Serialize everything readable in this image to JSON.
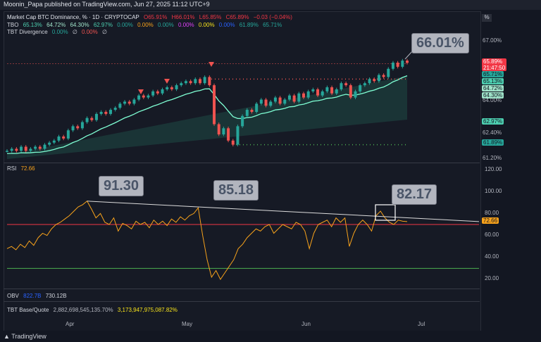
{
  "header": {
    "title": "Moonin_Papa published on TradingView.com, Jun 27, 2025 11:12 UTC+9"
  },
  "footer": {
    "brand": "TradingView"
  },
  "pct_button": "%",
  "legend": {
    "main": {
      "symbol": "Market Cap BTC Dominance, % · 1D · CRYPTOCAP",
      "o": "O65.91%",
      "h": "H66.01%",
      "l": "L65.85%",
      "c": "C65.89%",
      "chg": "−0.03 (−0.04%)"
    },
    "tbo": {
      "label": "TBO",
      "vals": [
        "65.13%",
        "64.72%",
        "64.30%",
        "62.97%",
        "0.00%",
        "0.00%",
        "0.00%",
        "0.00%",
        "0.00%",
        "0.00%",
        "61.89%",
        "65.71%"
      ]
    },
    "tbt": {
      "label": "TBT Divergence",
      "vals": [
        "0.00%",
        "∅",
        "0.00%",
        "∅"
      ]
    },
    "rsi": {
      "label": "RSI",
      "value": "72.66"
    },
    "obv": {
      "label": "OBV",
      "v1": "822.7B",
      "v2": "730.12B"
    },
    "tbt_bq": {
      "label": "TBT Base/Quote",
      "v1": "2,882,698,545,135.70%",
      "v2": "3,173,947,975,087.82%"
    }
  },
  "price_axis": {
    "ticks": [
      "67.00%",
      "64.00%",
      "62.40%",
      "61.20%"
    ],
    "tags": [
      {
        "text": "65.89%",
        "sub": "21:47:50",
        "color": "#f23645"
      },
      {
        "text": "65.71%",
        "sub": "",
        "color": "#26a69a"
      },
      {
        "text": "65.13%",
        "sub": "",
        "color": "#4dd0b1"
      },
      {
        "text": "64.72%",
        "sub": "",
        "color": "#9fe3c9"
      },
      {
        "text": "64.30%",
        "sub": "",
        "color": "#9fe3c9"
      },
      {
        "text": "62.97%",
        "sub": "",
        "color": "#4dd0b1"
      },
      {
        "text": "61.89%",
        "sub": "",
        "color": "#26a69a"
      }
    ]
  },
  "rsi_axis": {
    "ticks": [
      "120.00",
      "100.00",
      "80.00",
      "60.00",
      "40.00",
      "20.00"
    ],
    "current": "72.66"
  },
  "time_axis": [
    "Apr",
    "May",
    "Jun",
    "Jul"
  ],
  "callouts": {
    "price": "66.01%",
    "rsi1": "91.30",
    "rsi2": "85.18",
    "rsi3": "82.17"
  },
  "colors": {
    "bg": "#131722",
    "up": "#26a69a",
    "down": "#ef5350",
    "rsi": "#f7a21b",
    "trend": "#dcdcdc",
    "ob": "#f23645",
    "os": "#4caf50"
  },
  "chart_data": [
    {
      "type": "candlestick",
      "title": "Market Cap BTC Dominance, % · 1D · CRYPTOCAP",
      "x_ticks": [
        "Apr",
        "May",
        "Jun",
        "Jul"
      ],
      "ylim": [
        61.2,
        67.0
      ],
      "close": [
        61.6,
        61.7,
        61.6,
        61.8,
        61.6,
        61.7,
        61.8,
        61.7,
        61.9,
        62.0,
        62.1,
        62.3,
        62.2,
        62.6,
        62.8,
        62.7,
        63.0,
        63.2,
        63.1,
        63.4,
        63.5,
        63.4,
        63.6,
        63.7,
        63.9,
        64.0,
        63.9,
        64.1,
        64.3,
        64.2,
        64.3,
        64.5,
        64.4,
        64.6,
        64.7,
        64.6,
        64.8,
        64.9,
        65.0,
        64.9,
        65.1,
        64.9,
        65.2,
        64.8,
        62.9,
        62.4,
        62.7,
        62.1,
        61.9,
        62.8,
        63.3,
        63.6,
        63.5,
        63.9,
        64.1,
        63.8,
        64.0,
        64.2,
        63.9,
        64.1,
        64.3,
        64.0,
        64.4,
        64.2,
        64.5,
        64.6,
        64.3,
        64.5,
        64.7,
        64.4,
        64.6,
        64.9,
        64.8,
        64.2,
        64.5,
        64.8,
        64.9,
        65.1,
        65.0,
        65.3,
        65.2,
        65.6,
        65.9,
        65.7,
        66.0,
        65.89
      ],
      "annotations": [
        "66.01%"
      ]
    },
    {
      "type": "line",
      "title": "RSI",
      "x_ticks": [
        "Apr",
        "May",
        "Jun",
        "Jul"
      ],
      "ylim": [
        10,
        120
      ],
      "values": [
        48,
        50,
        47,
        52,
        49,
        55,
        51,
        58,
        62,
        60,
        66,
        70,
        72,
        75,
        78,
        82,
        86,
        88,
        91.3,
        84,
        76,
        80,
        72,
        70,
        76,
        64,
        71,
        69,
        66,
        73,
        70,
        72,
        67,
        74,
        70,
        73,
        69,
        75,
        72,
        77,
        74,
        78,
        80,
        85.18,
        60,
        38,
        22,
        28,
        20,
        26,
        32,
        38,
        48,
        52,
        58,
        62,
        66,
        64,
        68,
        70,
        62,
        66,
        70,
        68,
        66,
        72,
        70,
        64,
        48,
        62,
        70,
        72,
        74,
        68,
        76,
        72,
        76,
        50,
        62,
        70,
        74,
        70,
        64,
        78,
        82.17,
        76,
        72,
        70,
        74,
        73,
        72.66
      ],
      "reference_lines": [
        70,
        30
      ],
      "annotations": [
        "91.30",
        "85.18",
        "82.17"
      ]
    }
  ]
}
